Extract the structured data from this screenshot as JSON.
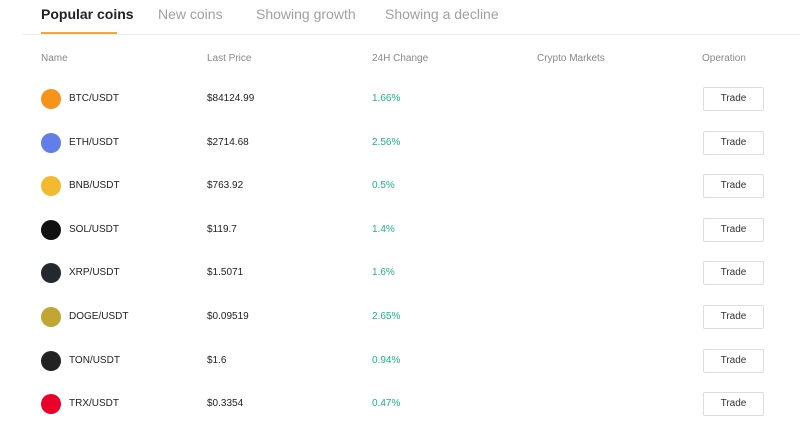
{
  "tabs": [
    "Popular coins",
    "New coins",
    "Showing growth",
    "Showing a decline"
  ],
  "table": {
    "columns": [
      "Name",
      "Last Price",
      "24H Change",
      "Crypto Markets",
      "Operation"
    ],
    "rows": [
      {
        "pair": "BTC/USDT",
        "price": "$84124.99",
        "change": "1.66%",
        "action": "Trade"
      },
      {
        "pair": "ETH/USDT",
        "price": "$2714.68",
        "change": "2.56%",
        "action": "Trade"
      },
      {
        "pair": "BNB/USDT",
        "price": "$763.92",
        "change": "0.5%",
        "action": "Trade"
      },
      {
        "pair": "SOL/USDT",
        "price": "$119.7",
        "change": "1.4%",
        "action": "Trade"
      },
      {
        "pair": "XRP/USDT",
        "price": "$1.5071",
        "change": "1.6%",
        "action": "Trade"
      },
      {
        "pair": "DOGE/USDT",
        "price": "$0.09519",
        "change": "2.65%",
        "action": "Trade"
      },
      {
        "pair": "TON/USDT",
        "price": "$1.6",
        "change": "0.94%",
        "action": "Trade"
      },
      {
        "pair": "TRX/USDT",
        "price": "$0.3354",
        "change": "0.47%",
        "action": "Trade"
      }
    ]
  }
}
